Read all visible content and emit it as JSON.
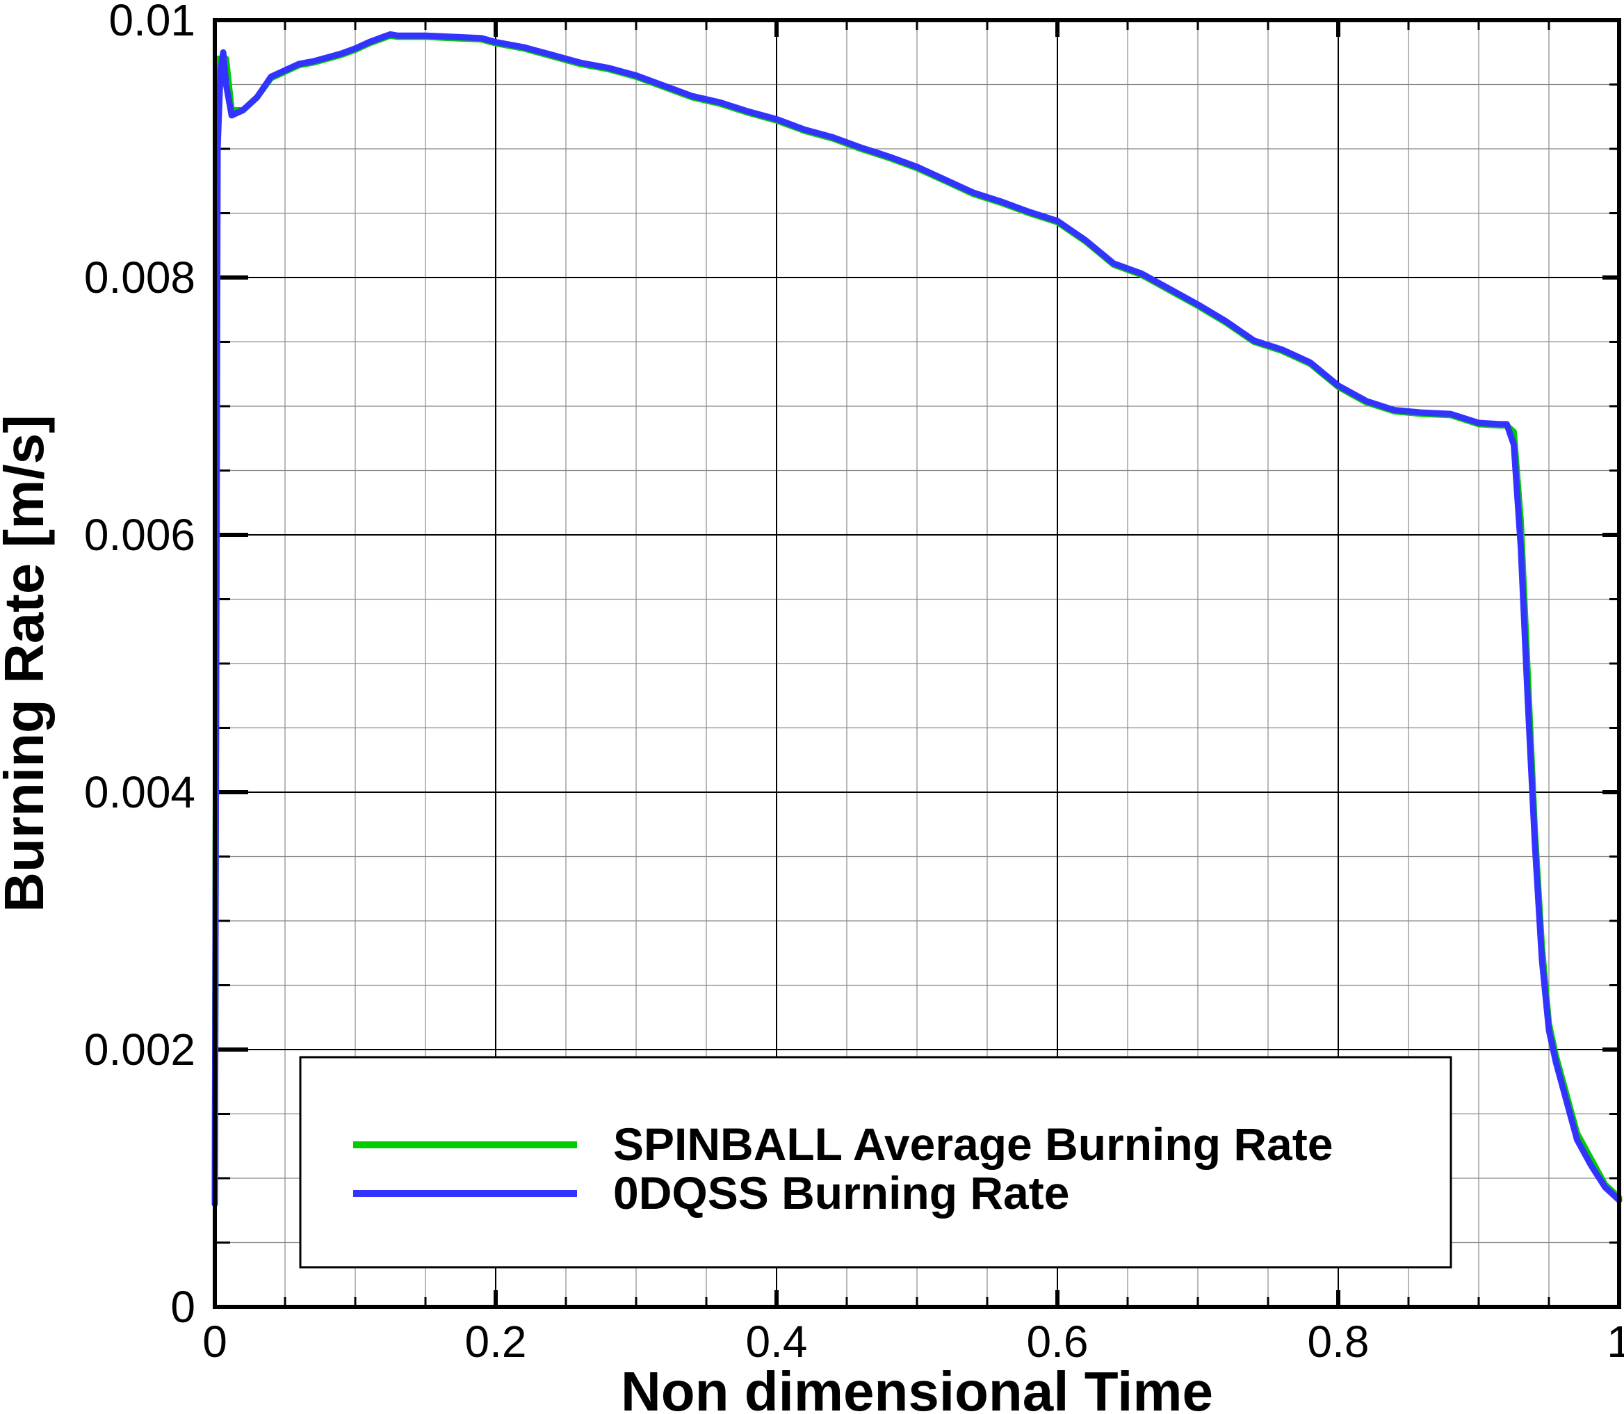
{
  "chart_data": {
    "type": "line",
    "title": "",
    "xlabel": "Non dimensional Time",
    "ylabel": "Burning Rate [m/s]",
    "xlim": [
      0,
      1
    ],
    "ylim": [
      0,
      0.01
    ],
    "xticks": [
      "0",
      "0.2",
      "0.4",
      "0.6",
      "0.8",
      "1"
    ],
    "yticks": [
      "0",
      "0.002",
      "0.004",
      "0.006",
      "0.008",
      "0.01"
    ],
    "grid": true,
    "legend": {
      "placement": "bottom-center"
    },
    "series": [
      {
        "name": "SPINBALL Average Burning Rate",
        "color": "#00cc00",
        "x": [
          0,
          0.002,
          0.004,
          0.008,
          0.012,
          0.02,
          0.03,
          0.04,
          0.05,
          0.06,
          0.07,
          0.08,
          0.09,
          0.1,
          0.11,
          0.12,
          0.125,
          0.13,
          0.15,
          0.17,
          0.19,
          0.2,
          0.22,
          0.24,
          0.26,
          0.28,
          0.3,
          0.32,
          0.34,
          0.36,
          0.38,
          0.4,
          0.42,
          0.44,
          0.46,
          0.48,
          0.5,
          0.52,
          0.54,
          0.56,
          0.58,
          0.6,
          0.62,
          0.64,
          0.66,
          0.68,
          0.7,
          0.72,
          0.74,
          0.76,
          0.78,
          0.8,
          0.82,
          0.84,
          0.86,
          0.88,
          0.9,
          0.915,
          0.92,
          0.925,
          0.93,
          0.935,
          0.94,
          0.945,
          0.95,
          0.955,
          0.96,
          0.965,
          0.97,
          0.98,
          0.99,
          1.0
        ],
        "y": [
          0.0008,
          0.0097,
          0.0097,
          0.0097,
          0.0093,
          0.0093,
          0.0094,
          0.00955,
          0.0096,
          0.00965,
          0.00967,
          0.0097,
          0.00973,
          0.00977,
          0.00982,
          0.00986,
          0.00988,
          0.00987,
          0.00987,
          0.00986,
          0.00985,
          0.00982,
          0.00978,
          0.00972,
          0.00966,
          0.00962,
          0.00956,
          0.00948,
          0.0094,
          0.00935,
          0.00928,
          0.00922,
          0.00914,
          0.00908,
          0.009,
          0.00893,
          0.00885,
          0.00875,
          0.00865,
          0.00858,
          0.0085,
          0.00843,
          0.00828,
          0.0081,
          0.00802,
          0.0079,
          0.00778,
          0.00765,
          0.0075,
          0.00743,
          0.00733,
          0.00715,
          0.00703,
          0.00696,
          0.00694,
          0.00693,
          0.00686,
          0.00685,
          0.00685,
          0.0068,
          0.0061,
          0.0049,
          0.0037,
          0.0028,
          0.0022,
          0.00195,
          0.00175,
          0.00155,
          0.00135,
          0.00115,
          0.00095,
          0.00085
        ]
      },
      {
        "name": "0DQSS Burning Rate",
        "color": "#3333ff",
        "x": [
          0,
          0.002,
          0.004,
          0.006,
          0.008,
          0.012,
          0.02,
          0.03,
          0.04,
          0.05,
          0.06,
          0.07,
          0.08,
          0.09,
          0.1,
          0.11,
          0.12,
          0.125,
          0.13,
          0.15,
          0.17,
          0.19,
          0.2,
          0.22,
          0.24,
          0.26,
          0.28,
          0.3,
          0.32,
          0.34,
          0.36,
          0.38,
          0.4,
          0.42,
          0.44,
          0.46,
          0.48,
          0.5,
          0.52,
          0.54,
          0.56,
          0.58,
          0.6,
          0.62,
          0.64,
          0.66,
          0.68,
          0.7,
          0.72,
          0.74,
          0.76,
          0.78,
          0.8,
          0.82,
          0.84,
          0.86,
          0.88,
          0.9,
          0.915,
          0.92,
          0.925,
          0.93,
          0.935,
          0.94,
          0.945,
          0.95,
          0.955,
          0.96,
          0.965,
          0.97,
          0.98,
          0.99,
          1.0
        ],
        "y": [
          0.0008,
          0.009,
          0.0096,
          0.00975,
          0.0095,
          0.00926,
          0.0093,
          0.0094,
          0.00956,
          0.00961,
          0.00966,
          0.00968,
          0.00971,
          0.00974,
          0.00978,
          0.00983,
          0.00987,
          0.00989,
          0.00988,
          0.00988,
          0.00987,
          0.00986,
          0.00983,
          0.00979,
          0.00973,
          0.00967,
          0.00963,
          0.00957,
          0.00949,
          0.00941,
          0.00936,
          0.00929,
          0.00923,
          0.00915,
          0.00909,
          0.00901,
          0.00894,
          0.00886,
          0.00876,
          0.00866,
          0.00859,
          0.00851,
          0.00844,
          0.00829,
          0.00811,
          0.00803,
          0.00791,
          0.00779,
          0.00766,
          0.00751,
          0.00744,
          0.00734,
          0.00716,
          0.00704,
          0.00697,
          0.00695,
          0.00694,
          0.00687,
          0.00686,
          0.00686,
          0.0067,
          0.0059,
          0.0047,
          0.0036,
          0.0027,
          0.00215,
          0.0019,
          0.0017,
          0.0015,
          0.0013,
          0.0011,
          0.00093,
          0.00083
        ]
      }
    ]
  }
}
